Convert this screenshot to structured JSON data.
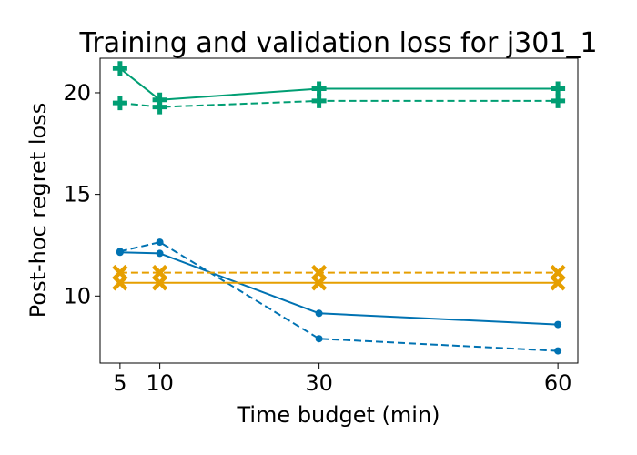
{
  "chart_data": {
    "type": "line",
    "title": "Training and validation loss for j301_1",
    "xlabel": "Time budget (min)",
    "ylabel": "Post-hoc regret loss",
    "x": [
      5,
      10,
      30,
      60
    ],
    "xticks": [
      5,
      10,
      30,
      60
    ],
    "yticks": [
      10,
      15,
      20
    ],
    "xlim": [
      2.5,
      62.5
    ],
    "ylim": [
      6.7,
      21.7
    ],
    "grid": false,
    "legend": "none",
    "series": [
      {
        "color": "#009E73",
        "linestyle": "solid",
        "marker": "plus",
        "values": [
          21.2,
          19.65,
          20.2,
          20.2
        ]
      },
      {
        "color": "#009E73",
        "linestyle": "dashed",
        "marker": "plus",
        "values": [
          19.5,
          19.3,
          19.6,
          19.6
        ]
      },
      {
        "color": "#0072B2",
        "linestyle": "solid",
        "marker": "circle",
        "values": [
          12.15,
          12.1,
          9.15,
          8.6
        ]
      },
      {
        "color": "#0072B2",
        "linestyle": "dashed",
        "marker": "circle",
        "values": [
          12.2,
          12.65,
          7.9,
          7.3
        ]
      },
      {
        "color": "#E69F00",
        "linestyle": "solid",
        "marker": "x",
        "values": [
          10.65,
          10.65,
          10.65,
          10.65
        ]
      },
      {
        "color": "#E69F00",
        "linestyle": "dashed",
        "marker": "x",
        "values": [
          11.15,
          11.15,
          11.15,
          11.15
        ]
      }
    ]
  }
}
